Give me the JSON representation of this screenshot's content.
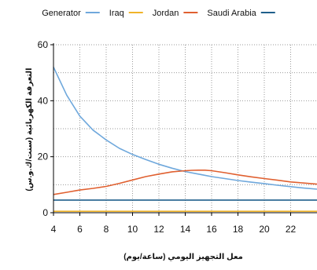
{
  "chart_data": {
    "type": "line",
    "title": "",
    "xlabel": "معل التجهيز اليومي (ساعة/يوم)",
    "ylabel": "التعرفة الكهربائية (سنت/ك.و.س)",
    "xlim": [
      4,
      24
    ],
    "ylim": [
      0,
      60
    ],
    "x_ticks": [
      "4",
      "6",
      "8",
      "10",
      "12",
      "14",
      "16",
      "18",
      "20",
      "22"
    ],
    "y_ticks": [
      "0",
      "20",
      "40",
      "60"
    ],
    "grid": true,
    "legend_position": "top",
    "series": [
      {
        "name": "Generator",
        "color": "#6fa8dc",
        "x": [
          4,
          5,
          6,
          7,
          8,
          9,
          10,
          11,
          12,
          13,
          14,
          15,
          16,
          17,
          18,
          19,
          20,
          21,
          22,
          23,
          24
        ],
        "values": [
          52,
          42,
          34.5,
          29.5,
          26,
          23,
          20.8,
          19,
          17.3,
          15.9,
          14.7,
          13.8,
          12.9,
          12.2,
          11.5,
          10.9,
          10.4,
          9.8,
          9.3,
          8.8,
          8.4
        ]
      },
      {
        "name": "Iraq",
        "color": "#f0b429",
        "x": [
          4,
          24
        ],
        "values": [
          0.5,
          0.5
        ]
      },
      {
        "name": "Jordan",
        "color": "#e06030",
        "x": [
          4,
          5,
          6,
          7,
          8,
          9,
          10,
          11,
          12,
          13,
          14,
          14.5,
          15,
          15.5,
          16,
          17,
          18,
          19,
          20,
          21,
          22,
          23,
          24
        ],
        "values": [
          6.5,
          7.3,
          8.1,
          8.7,
          9.4,
          10.5,
          11.7,
          12.9,
          13.8,
          14.6,
          15.0,
          15.15,
          15.2,
          15.2,
          15.0,
          14.3,
          13.5,
          12.8,
          12.2,
          11.6,
          11.0,
          10.6,
          10.2
        ]
      },
      {
        "name": "Saudi Arabia",
        "color": "#1f5f8b",
        "x": [
          4,
          24
        ],
        "values": [
          4.5,
          4.5
        ]
      }
    ]
  }
}
